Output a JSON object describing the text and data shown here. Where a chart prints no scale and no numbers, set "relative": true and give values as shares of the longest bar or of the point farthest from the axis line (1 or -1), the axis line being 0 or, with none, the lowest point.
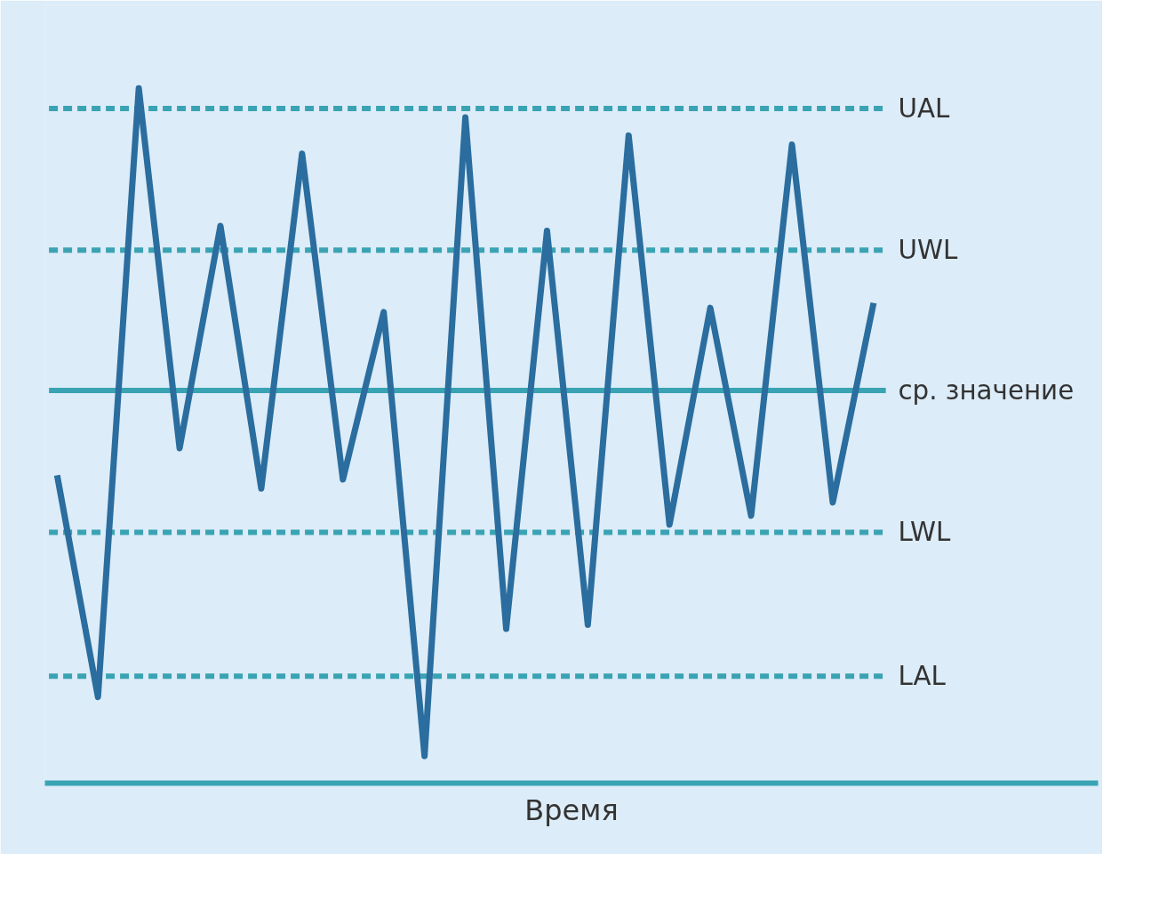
{
  "chart_data": {
    "type": "line",
    "relative": true,
    "xlabel": "Время",
    "categories": [
      null,
      null,
      null,
      null,
      null,
      null,
      null,
      null,
      null,
      null,
      null,
      null,
      null,
      null,
      null,
      null,
      null,
      null,
      null,
      null,
      null
    ],
    "series": [
      {
        "color": "#2a6d9e",
        "values": [
          0.443,
          0.124,
          1,
          0.482,
          0.802,
          0.424,
          0.906,
          0.437,
          0.678,
          0.039,
          0.958,
          0.222,
          0.795,
          0.228,
          0.932,
          0.372,
          0.684,
          0.385,
          0.919,
          0.404,
          0.691
        ]
      }
    ],
    "ref_lines": [
      {
        "axis": "y",
        "value": 0.971,
        "label": "UAL",
        "color": "#3aa3b3",
        "line_style": "dashed"
      },
      {
        "axis": "y",
        "value": 0.767,
        "label": "UWL",
        "color": "#3aa3b3",
        "line_style": "dashed"
      },
      {
        "axis": "y",
        "value": 0.565,
        "label": "ср. значение",
        "color": "#3aa3b3",
        "line_style": "solid"
      },
      {
        "axis": "y",
        "value": 0.361,
        "label": "LWL",
        "color": "#3aa3b3",
        "line_style": "dashed"
      },
      {
        "axis": "y",
        "value": 0.154,
        "label": "LAL",
        "color": "#3aa3b3",
        "line_style": "dashed"
      }
    ],
    "grid": false,
    "marker": "none",
    "line_style": "solid"
  }
}
